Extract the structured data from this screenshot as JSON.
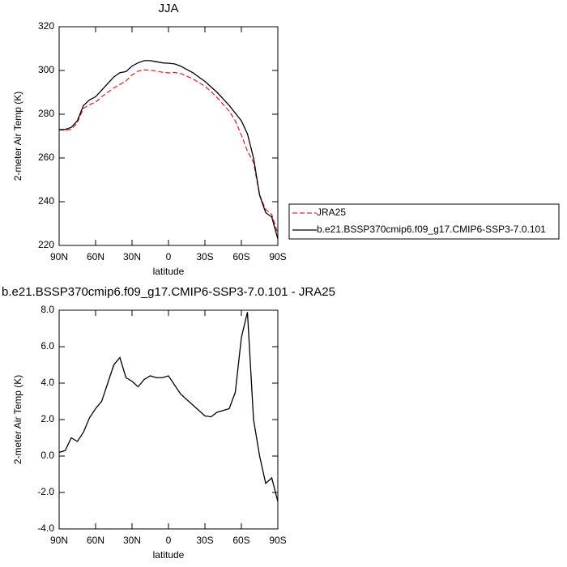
{
  "chart_data": [
    {
      "type": "line",
      "title": "JJA",
      "xlabel": "latitude",
      "ylabel": "2-meter Air Temp (K)",
      "x": [
        90,
        85,
        80,
        75,
        70,
        65,
        60,
        55,
        50,
        45,
        40,
        35,
        30,
        25,
        20,
        15,
        10,
        5,
        0,
        -5,
        -10,
        -15,
        -20,
        -25,
        -30,
        -35,
        -40,
        -45,
        -50,
        -55,
        -60,
        -65,
        -70,
        -75,
        -80,
        -85,
        -90
      ],
      "xlim": [
        90,
        -90
      ],
      "xticks": [
        {
          "value": 90,
          "label": "90N"
        },
        {
          "value": 60,
          "label": "60N"
        },
        {
          "value": 30,
          "label": "30N"
        },
        0,
        {
          "value": -30,
          "label": "30S"
        },
        {
          "value": -60,
          "label": "60S"
        },
        {
          "value": -90,
          "label": "90S"
        }
      ],
      "ylim": [
        220,
        320
      ],
      "yticks": [
        220,
        240,
        260,
        280,
        300,
        320
      ],
      "legend": "right",
      "series": [
        {
          "name": "JRA25",
          "color": "#e8262b",
          "line_style": "dashed",
          "values": [
            272.8,
            272.7,
            273,
            276.2,
            282.7,
            284.4,
            285.4,
            288,
            290,
            292,
            293.6,
            295.2,
            297.9,
            299.7,
            300.3,
            300.1,
            299.7,
            299.2,
            298.9,
            299.1,
            298.6,
            297.4,
            296.2,
            294.5,
            292.8,
            290.35,
            287.6,
            284.5,
            281.4,
            277,
            270.5,
            263.1,
            258,
            243,
            236.5,
            234.2,
            225.5
          ]
        },
        {
          "name": "b.e21.BSSP370cmip6.f09_g17.CMIP6-SSP3-7.0.101",
          "color": "#000000",
          "line_style": "solid",
          "values": [
            273,
            273,
            274,
            277,
            284,
            286.5,
            288,
            291,
            294,
            297,
            299,
            299.5,
            302,
            303.5,
            304.5,
            304.5,
            304,
            303.5,
            303.3,
            303,
            302,
            300.5,
            299,
            297,
            295,
            292.5,
            290,
            287,
            284,
            280.5,
            277,
            271,
            260,
            243,
            235,
            233,
            223
          ]
        }
      ]
    },
    {
      "type": "line",
      "title": "b.e21.BSSP370cmip6.f09_g17.CMIP6-SSP3-7.0.101 - JRA25",
      "xlabel": "latitude",
      "ylabel": "2-meter Air Temp (K)",
      "x": [
        90,
        85,
        80,
        75,
        70,
        65,
        60,
        55,
        50,
        45,
        40,
        35,
        30,
        25,
        20,
        15,
        10,
        5,
        0,
        -5,
        -10,
        -15,
        -20,
        -25,
        -30,
        -35,
        -40,
        -45,
        -50,
        -55,
        -60,
        -65,
        -70,
        -75,
        -80,
        -85,
        -90
      ],
      "xlim": [
        90,
        -90
      ],
      "xticks": [
        {
          "value": 90,
          "label": "90N"
        },
        {
          "value": 60,
          "label": "60N"
        },
        {
          "value": 30,
          "label": "30N"
        },
        0,
        {
          "value": -30,
          "label": "30S"
        },
        {
          "value": -60,
          "label": "60S"
        },
        {
          "value": -90,
          "label": "90S"
        }
      ],
      "ylim": [
        -4,
        8
      ],
      "yticks": [
        {
          "value": -4,
          "label": "-4.0"
        },
        {
          "value": -2,
          "label": "-2.0"
        },
        {
          "value": 0,
          "label": "0.0"
        },
        {
          "value": 2,
          "label": "2.0"
        },
        {
          "value": 4,
          "label": "4.0"
        },
        {
          "value": 6,
          "label": "6.0"
        },
        {
          "value": 8,
          "label": "8.0"
        }
      ],
      "color": "#000000",
      "values": [
        0.2,
        0.3,
        1.0,
        0.8,
        1.3,
        2.1,
        2.6,
        3.0,
        4.0,
        5.0,
        5.4,
        4.3,
        4.1,
        3.8,
        4.2,
        4.4,
        4.3,
        4.3,
        4.4,
        3.9,
        3.4,
        3.1,
        2.8,
        2.5,
        2.2,
        2.15,
        2.4,
        2.5,
        2.6,
        3.5,
        6.5,
        7.9,
        2.0,
        0.0,
        -1.5,
        -1.2,
        -2.5
      ]
    }
  ]
}
